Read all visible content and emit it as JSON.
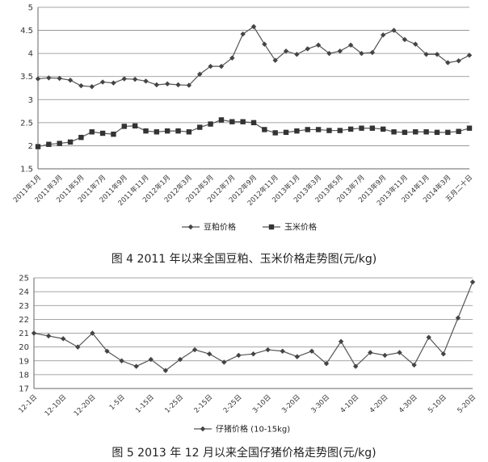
{
  "chart_data": [
    {
      "type": "line",
      "title": "图 4   2011 年以来全国豆粕、玉米价格走势图(元/kg)",
      "ylim": [
        1.5,
        5
      ],
      "yticks": [
        1.5,
        2,
        2.5,
        3,
        3.5,
        4,
        4.5,
        5
      ],
      "grid": true,
      "legend_position": "bottom",
      "x_labels": [
        "2011年1月",
        "2011年3月",
        "2011年5月",
        "2011年7月",
        "2011年9月",
        "2011年11月",
        "2012年1月",
        "2012年3月",
        "2012年5月",
        "2012年7月",
        "2012年9月",
        "2012年11月",
        "2013年1月",
        "2013年3月",
        "2013年5月",
        "2013年7月",
        "2013年9月",
        "2013年11月",
        "2014年1月",
        "2014年3月",
        "五月二十日"
      ],
      "series": [
        {
          "name": "豆粕价格",
          "marker": "diamond",
          "values": [
            3.45,
            3.47,
            3.46,
            3.42,
            3.3,
            3.28,
            3.38,
            3.36,
            3.45,
            3.44,
            3.4,
            3.32,
            3.34,
            3.32,
            3.31,
            3.55,
            3.72,
            3.72,
            3.9,
            4.42,
            4.58,
            4.2,
            3.85,
            4.05,
            3.98,
            4.1,
            4.18,
            4.0,
            4.05,
            4.18,
            4.0,
            4.02,
            4.4,
            4.5,
            4.3,
            4.2,
            3.98,
            3.98,
            3.8,
            3.84,
            3.96
          ]
        },
        {
          "name": "玉米价格",
          "marker": "square",
          "values": [
            1.98,
            2.03,
            2.05,
            2.08,
            2.18,
            2.3,
            2.27,
            2.25,
            2.42,
            2.43,
            2.32,
            2.3,
            2.32,
            2.32,
            2.3,
            2.4,
            2.47,
            2.56,
            2.52,
            2.52,
            2.5,
            2.35,
            2.28,
            2.29,
            2.32,
            2.35,
            2.35,
            2.33,
            2.33,
            2.36,
            2.38,
            2.38,
            2.36,
            2.3,
            2.29,
            2.3,
            2.3,
            2.29,
            2.29,
            2.31,
            2.38
          ]
        }
      ]
    },
    {
      "type": "line",
      "title": "图 5   2013 年 12 月以来全国仔猪价格走势图(元/kg)",
      "ylim": [
        17,
        25
      ],
      "yticks": [
        17,
        18,
        19,
        20,
        21,
        22,
        23,
        24,
        25
      ],
      "grid": true,
      "legend_position": "bottom",
      "x_labels": [
        "12-1日",
        "12-10日",
        "12-20日",
        "1-5日",
        "1-15日",
        "1-25日",
        "2-15日",
        "2-25日",
        "3-10日",
        "3-20日",
        "3-30日",
        "4-10日",
        "4-20日",
        "4-30日",
        "5-10日",
        "5-20日"
      ],
      "series": [
        {
          "name": "仔猪价格 (10-15kg)",
          "marker": "diamond",
          "values": [
            21.0,
            20.8,
            20.6,
            20.0,
            21.0,
            19.7,
            19.0,
            18.6,
            19.1,
            18.3,
            19.1,
            19.8,
            19.5,
            18.9,
            19.4,
            19.5,
            19.8,
            19.7,
            19.3,
            19.7,
            18.8,
            20.4,
            18.6,
            19.6,
            19.4,
            19.6,
            18.7,
            20.7,
            19.5,
            22.1,
            24.7
          ]
        }
      ]
    }
  ]
}
